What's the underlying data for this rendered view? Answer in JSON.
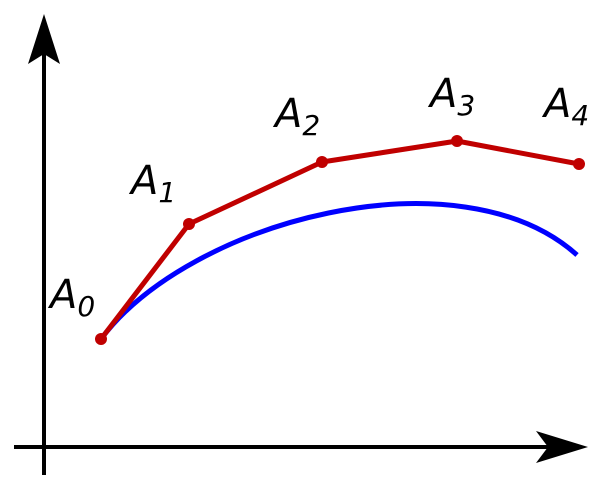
{
  "nodes": [
    {
      "label": "A",
      "sub": "0"
    },
    {
      "label": "A",
      "sub": "1"
    },
    {
      "label": "A",
      "sub": "2"
    },
    {
      "label": "A",
      "sub": "3"
    },
    {
      "label": "A",
      "sub": "4"
    }
  ]
}
